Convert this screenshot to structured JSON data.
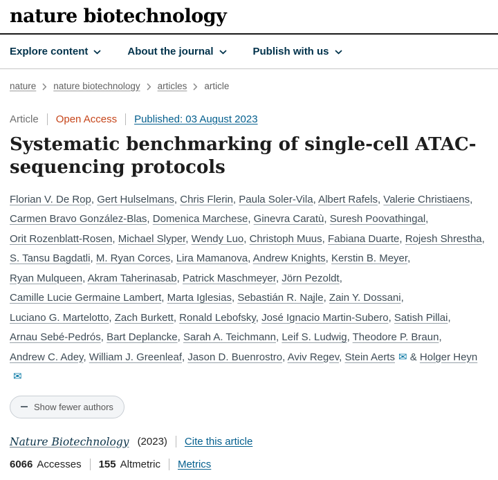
{
  "header": {
    "logo": "nature biotechnology",
    "nav": [
      {
        "label": "Explore content"
      },
      {
        "label": "About the journal"
      },
      {
        "label": "Publish with us"
      }
    ]
  },
  "breadcrumb": {
    "items": [
      {
        "label": "nature"
      },
      {
        "label": "nature biotechnology"
      },
      {
        "label": "articles"
      },
      {
        "label": "article"
      }
    ]
  },
  "article": {
    "type_label": "Article",
    "access_label": "Open Access",
    "published_label": "Published: 03 August 2023",
    "title": "Systematic benchmarking of single-cell ATAC-sequencing protocols"
  },
  "authors": {
    "separator": ", ",
    "ampersand": "&",
    "envelope_char": "✉",
    "show_fewer_label": "Show fewer authors",
    "list": [
      {
        "name": "Florian V. De Rop",
        "email": false
      },
      {
        "name": "Gert Hulselmans",
        "email": false
      },
      {
        "name": "Chris Flerin",
        "email": false
      },
      {
        "name": "Paula Soler-Vila",
        "email": false
      },
      {
        "name": "Albert Rafels",
        "email": false
      },
      {
        "name": "Valerie Christiaens",
        "email": false
      },
      {
        "name": "Carmen Bravo González-Blas",
        "email": false
      },
      {
        "name": "Domenica Marchese",
        "email": false
      },
      {
        "name": "Ginevra Caratù",
        "email": false
      },
      {
        "name": "Suresh Poovathingal",
        "email": false
      },
      {
        "name": "Orit Rozenblatt-Rosen",
        "email": false
      },
      {
        "name": "Michael Slyper",
        "email": false
      },
      {
        "name": "Wendy Luo",
        "email": false
      },
      {
        "name": "Christoph Muus",
        "email": false
      },
      {
        "name": "Fabiana Duarte",
        "email": false
      },
      {
        "name": "Rojesh Shrestha",
        "email": false
      },
      {
        "name": "S. Tansu Bagdatli",
        "email": false
      },
      {
        "name": "M. Ryan Corces",
        "email": false
      },
      {
        "name": "Lira Mamanova",
        "email": false
      },
      {
        "name": "Andrew Knights",
        "email": false
      },
      {
        "name": "Kerstin B. Meyer",
        "email": false
      },
      {
        "name": "Ryan Mulqueen",
        "email": false
      },
      {
        "name": "Akram Taherinasab",
        "email": false
      },
      {
        "name": "Patrick Maschmeyer",
        "email": false
      },
      {
        "name": "Jörn Pezoldt",
        "email": false
      },
      {
        "name": "Camille Lucie Germaine Lambert",
        "email": false
      },
      {
        "name": "Marta Iglesias",
        "email": false
      },
      {
        "name": "Sebastián R. Najle",
        "email": false
      },
      {
        "name": "Zain Y. Dossani",
        "email": false
      },
      {
        "name": "Luciano G. Martelotto",
        "email": false
      },
      {
        "name": "Zach Burkett",
        "email": false
      },
      {
        "name": "Ronald Lebofsky",
        "email": false
      },
      {
        "name": "José Ignacio Martin-Subero",
        "email": false
      },
      {
        "name": "Satish Pillai",
        "email": false
      },
      {
        "name": "Arnau Sebé-Pedrós",
        "email": false
      },
      {
        "name": "Bart Deplancke",
        "email": false
      },
      {
        "name": "Sarah A. Teichmann",
        "email": false
      },
      {
        "name": "Leif S. Ludwig",
        "email": false
      },
      {
        "name": "Theodore P. Braun",
        "email": false
      },
      {
        "name": "Andrew C. Adey",
        "email": false
      },
      {
        "name": "William J. Greenleaf",
        "email": false
      },
      {
        "name": "Jason D. Buenrostro",
        "email": false
      },
      {
        "name": "Aviv Regev",
        "email": false
      },
      {
        "name": "Stein Aerts",
        "email": true
      },
      {
        "name": "Holger Heyn",
        "email": true
      }
    ]
  },
  "citation": {
    "journal": "Nature Biotechnology",
    "year": "(2023)",
    "cite_link": "Cite this article"
  },
  "metrics": {
    "accesses_value": "6066",
    "accesses_label": "Accesses",
    "altmetric_value": "155",
    "altmetric_label": "Altmetric",
    "metrics_link": "Metrics"
  },
  "colors": {
    "link_blue": "#025e8d",
    "open_access_orange": "#c6451a",
    "nav_navy": "#01324b"
  }
}
